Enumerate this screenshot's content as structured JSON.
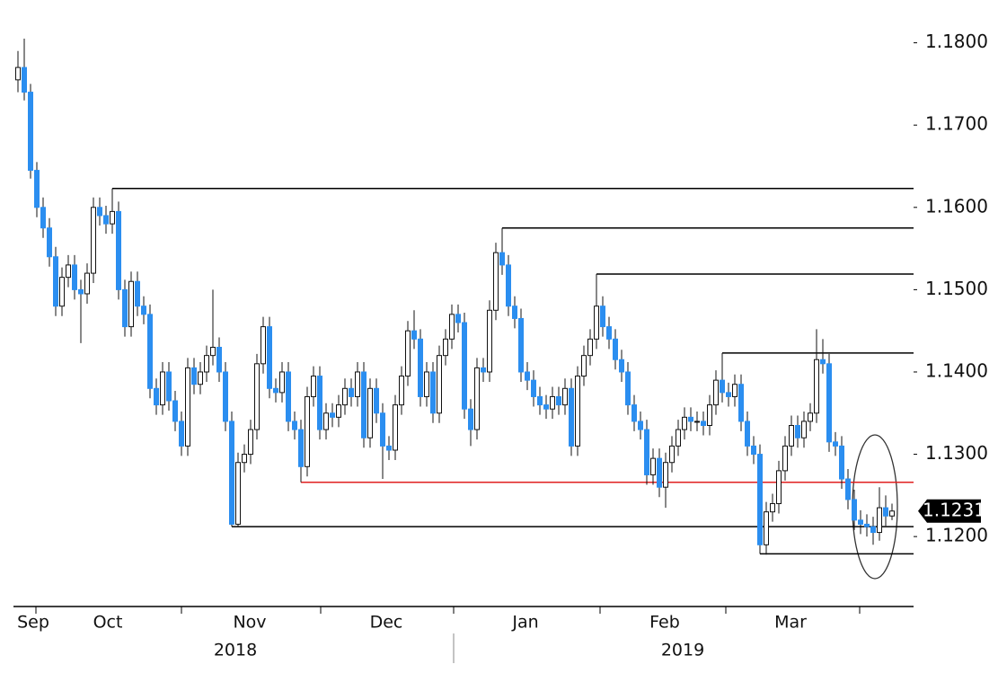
{
  "chart_data": {
    "type": "candlestick",
    "ylim": [
      1.1115,
      1.1852
    ],
    "yticks": [
      {
        "value": 1.18,
        "label": "1.1800"
      },
      {
        "value": 1.17,
        "label": "1.1700"
      },
      {
        "value": 1.16,
        "label": "1.1600"
      },
      {
        "value": 1.15,
        "label": "1.1500"
      },
      {
        "value": 1.14,
        "label": "1.1400"
      },
      {
        "value": 1.13,
        "label": "1.1300"
      },
      {
        "value": 1.12,
        "label": "1.1200"
      }
    ],
    "x_labels": [
      "Sep",
      "Oct",
      "Nov",
      "Dec",
      "Jan",
      "Feb",
      "Mar"
    ],
    "year_labels": [
      "2018",
      "2019"
    ],
    "up_color": "#ffffff",
    "down_color": "#2b8ef0",
    "last_price": 1.1231,
    "levels": [
      {
        "value": 1.1623,
        "start": 15,
        "color": "#000000"
      },
      {
        "value": 1.1575,
        "start": 77,
        "color": "#000000"
      },
      {
        "value": 1.1519,
        "start": 92,
        "color": "#000000"
      },
      {
        "value": 1.1423,
        "start": 112,
        "color": "#000000"
      },
      {
        "value": 1.1266,
        "start": 45,
        "color": "#e02020"
      },
      {
        "value": 1.1212,
        "start": 34,
        "color": "#000000"
      },
      {
        "value": 1.1179,
        "start": 118,
        "color": "#000000"
      }
    ],
    "candles": [
      [
        1.1755,
        1.179,
        1.174,
        1.177
      ],
      [
        1.177,
        1.1805,
        1.173,
        1.174
      ],
      [
        1.174,
        1.175,
        1.1635,
        1.1645
      ],
      [
        1.1645,
        1.1655,
        1.1588,
        1.16
      ],
      [
        1.16,
        1.1612,
        1.1563,
        1.1575
      ],
      [
        1.1575,
        1.1587,
        1.1528,
        1.154
      ],
      [
        1.154,
        1.1552,
        1.1468,
        1.148
      ],
      [
        1.148,
        1.1527,
        1.1468,
        1.1515
      ],
      [
        1.1515,
        1.1542,
        1.1503,
        1.153
      ],
      [
        1.153,
        1.1542,
        1.1488,
        1.15
      ],
      [
        1.15,
        1.1512,
        1.1435,
        1.1495
      ],
      [
        1.1495,
        1.1532,
        1.1483,
        1.152
      ],
      [
        1.152,
        1.1612,
        1.1508,
        1.16
      ],
      [
        1.16,
        1.1612,
        1.1578,
        1.159
      ],
      [
        1.159,
        1.1602,
        1.1568,
        1.158
      ],
      [
        1.158,
        1.1623,
        1.1568,
        1.1595
      ],
      [
        1.1595,
        1.1607,
        1.1488,
        1.15
      ],
      [
        1.15,
        1.1512,
        1.1443,
        1.1455
      ],
      [
        1.1455,
        1.1522,
        1.1443,
        1.151
      ],
      [
        1.151,
        1.1522,
        1.1468,
        1.148
      ],
      [
        1.148,
        1.1492,
        1.1458,
        1.147
      ],
      [
        1.147,
        1.1482,
        1.1368,
        1.138
      ],
      [
        1.138,
        1.1392,
        1.1348,
        1.136
      ],
      [
        1.136,
        1.1412,
        1.1348,
        1.14
      ],
      [
        1.14,
        1.1412,
        1.1353,
        1.1365
      ],
      [
        1.1365,
        1.1377,
        1.1328,
        1.134
      ],
      [
        1.134,
        1.1352,
        1.1298,
        1.131
      ],
      [
        1.131,
        1.1417,
        1.1298,
        1.1405
      ],
      [
        1.1405,
        1.1417,
        1.1373,
        1.1385
      ],
      [
        1.1385,
        1.1412,
        1.1373,
        1.14
      ],
      [
        1.14,
        1.1432,
        1.1388,
        1.142
      ],
      [
        1.142,
        1.15,
        1.1408,
        1.143
      ],
      [
        1.143,
        1.1442,
        1.1388,
        1.14
      ],
      [
        1.14,
        1.1412,
        1.1328,
        1.134
      ],
      [
        1.134,
        1.1352,
        1.1212,
        1.1215
      ],
      [
        1.1215,
        1.1302,
        1.1212,
        1.129
      ],
      [
        1.129,
        1.1312,
        1.1278,
        1.13
      ],
      [
        1.13,
        1.1342,
        1.1288,
        1.133
      ],
      [
        1.133,
        1.1422,
        1.1318,
        1.141
      ],
      [
        1.141,
        1.1467,
        1.1398,
        1.1455
      ],
      [
        1.1455,
        1.1467,
        1.1368,
        1.138
      ],
      [
        1.138,
        1.1392,
        1.1363,
        1.1375
      ],
      [
        1.1375,
        1.1412,
        1.1363,
        1.14
      ],
      [
        1.14,
        1.1412,
        1.1328,
        1.134
      ],
      [
        1.134,
        1.1352,
        1.1318,
        1.133
      ],
      [
        1.133,
        1.1342,
        1.1266,
        1.1285
      ],
      [
        1.1285,
        1.1382,
        1.1273,
        1.137
      ],
      [
        1.137,
        1.1407,
        1.1358,
        1.1395
      ],
      [
        1.1395,
        1.1407,
        1.1318,
        1.133
      ],
      [
        1.133,
        1.1362,
        1.1318,
        1.135
      ],
      [
        1.135,
        1.1362,
        1.1333,
        1.1345
      ],
      [
        1.1345,
        1.1372,
        1.1333,
        1.136
      ],
      [
        1.136,
        1.1392,
        1.1348,
        1.138
      ],
      [
        1.138,
        1.1392,
        1.1358,
        1.137
      ],
      [
        1.137,
        1.1412,
        1.1358,
        1.14
      ],
      [
        1.14,
        1.1412,
        1.1308,
        1.132
      ],
      [
        1.132,
        1.1392,
        1.1308,
        1.138
      ],
      [
        1.138,
        1.1392,
        1.1338,
        1.135
      ],
      [
        1.135,
        1.1362,
        1.127,
        1.131
      ],
      [
        1.131,
        1.1322,
        1.1293,
        1.1305
      ],
      [
        1.1305,
        1.1372,
        1.1293,
        1.136
      ],
      [
        1.136,
        1.1407,
        1.1348,
        1.1395
      ],
      [
        1.1395,
        1.1462,
        1.1383,
        1.145
      ],
      [
        1.145,
        1.1475,
        1.1428,
        1.144
      ],
      [
        1.144,
        1.1452,
        1.1358,
        1.137
      ],
      [
        1.137,
        1.1412,
        1.1358,
        1.14
      ],
      [
        1.14,
        1.1412,
        1.1338,
        1.135
      ],
      [
        1.135,
        1.1432,
        1.1338,
        1.142
      ],
      [
        1.142,
        1.1452,
        1.1408,
        1.144
      ],
      [
        1.144,
        1.1482,
        1.1428,
        1.147
      ],
      [
        1.147,
        1.1482,
        1.1448,
        1.146
      ],
      [
        1.146,
        1.1472,
        1.1343,
        1.1355
      ],
      [
        1.1355,
        1.1367,
        1.131,
        1.133
      ],
      [
        1.133,
        1.1417,
        1.1318,
        1.1405
      ],
      [
        1.1405,
        1.1417,
        1.1388,
        1.14
      ],
      [
        1.14,
        1.1487,
        1.1388,
        1.1475
      ],
      [
        1.1475,
        1.1557,
        1.1463,
        1.1545
      ],
      [
        1.1545,
        1.1575,
        1.1518,
        1.153
      ],
      [
        1.153,
        1.1542,
        1.1468,
        1.148
      ],
      [
        1.148,
        1.1492,
        1.1453,
        1.1465
      ],
      [
        1.1465,
        1.1477,
        1.1388,
        1.14
      ],
      [
        1.14,
        1.1412,
        1.1378,
        1.139
      ],
      [
        1.139,
        1.1402,
        1.1358,
        1.137
      ],
      [
        1.137,
        1.1382,
        1.1348,
        1.136
      ],
      [
        1.136,
        1.1372,
        1.1343,
        1.1355
      ],
      [
        1.1355,
        1.1382,
        1.1343,
        1.137
      ],
      [
        1.137,
        1.1382,
        1.1348,
        1.136
      ],
      [
        1.136,
        1.1392,
        1.1348,
        1.138
      ],
      [
        1.138,
        1.1392,
        1.1298,
        1.131
      ],
      [
        1.131,
        1.1407,
        1.1298,
        1.1395
      ],
      [
        1.1395,
        1.1432,
        1.1383,
        1.142
      ],
      [
        1.142,
        1.1452,
        1.1408,
        1.144
      ],
      [
        1.144,
        1.1519,
        1.1428,
        1.148
      ],
      [
        1.148,
        1.1492,
        1.1443,
        1.1455
      ],
      [
        1.1455,
        1.1467,
        1.1428,
        1.144
      ],
      [
        1.144,
        1.1452,
        1.1403,
        1.1415
      ],
      [
        1.1415,
        1.1427,
        1.1388,
        1.14
      ],
      [
        1.14,
        1.1412,
        1.1348,
        1.136
      ],
      [
        1.136,
        1.1372,
        1.1328,
        1.134
      ],
      [
        1.134,
        1.1352,
        1.1318,
        1.133
      ],
      [
        1.133,
        1.1342,
        1.1263,
        1.1275
      ],
      [
        1.1275,
        1.1307,
        1.1263,
        1.1295
      ],
      [
        1.1295,
        1.1307,
        1.1248,
        1.126
      ],
      [
        1.126,
        1.1302,
        1.1235,
        1.129
      ],
      [
        1.129,
        1.1322,
        1.1278,
        1.131
      ],
      [
        1.131,
        1.1342,
        1.1298,
        1.133
      ],
      [
        1.133,
        1.1357,
        1.1318,
        1.1345
      ],
      [
        1.1345,
        1.1357,
        1.1328,
        1.134
      ],
      [
        1.134,
        1.1352,
        1.1328,
        1.134
      ],
      [
        1.134,
        1.1352,
        1.1323,
        1.1335
      ],
      [
        1.1335,
        1.1372,
        1.1323,
        1.136
      ],
      [
        1.136,
        1.1402,
        1.1348,
        1.139
      ],
      [
        1.139,
        1.1423,
        1.1363,
        1.1375
      ],
      [
        1.1375,
        1.1387,
        1.1358,
        1.137
      ],
      [
        1.137,
        1.1397,
        1.1358,
        1.1385
      ],
      [
        1.1385,
        1.1397,
        1.1328,
        1.134
      ],
      [
        1.134,
        1.1352,
        1.1298,
        1.131
      ],
      [
        1.131,
        1.1322,
        1.1288,
        1.13
      ],
      [
        1.13,
        1.1312,
        1.1179,
        1.119
      ],
      [
        1.119,
        1.1242,
        1.1178,
        1.123
      ],
      [
        1.123,
        1.1252,
        1.1218,
        1.124
      ],
      [
        1.124,
        1.1292,
        1.1228,
        1.128
      ],
      [
        1.128,
        1.1322,
        1.1268,
        1.131
      ],
      [
        1.131,
        1.1347,
        1.1298,
        1.1335
      ],
      [
        1.1335,
        1.1347,
        1.1308,
        1.132
      ],
      [
        1.132,
        1.1352,
        1.1308,
        1.134
      ],
      [
        1.134,
        1.1362,
        1.1328,
        1.135
      ],
      [
        1.135,
        1.1452,
        1.1338,
        1.1415
      ],
      [
        1.1415,
        1.144,
        1.1398,
        1.141
      ],
      [
        1.141,
        1.1422,
        1.1303,
        1.1315
      ],
      [
        1.1315,
        1.1327,
        1.1298,
        1.131
      ],
      [
        1.131,
        1.1322,
        1.1258,
        1.127
      ],
      [
        1.127,
        1.1282,
        1.1233,
        1.1245
      ],
      [
        1.1245,
        1.1257,
        1.1208,
        1.122
      ],
      [
        1.122,
        1.1232,
        1.1203,
        1.1215
      ],
      [
        1.1215,
        1.1227,
        1.12,
        1.1212
      ],
      [
        1.1212,
        1.1224,
        1.119,
        1.1205
      ],
      [
        1.1205,
        1.126,
        1.1195,
        1.1235
      ],
      [
        1.1235,
        1.125,
        1.1213,
        1.1225
      ],
      [
        1.1225,
        1.124,
        1.122,
        1.1231
      ]
    ]
  }
}
